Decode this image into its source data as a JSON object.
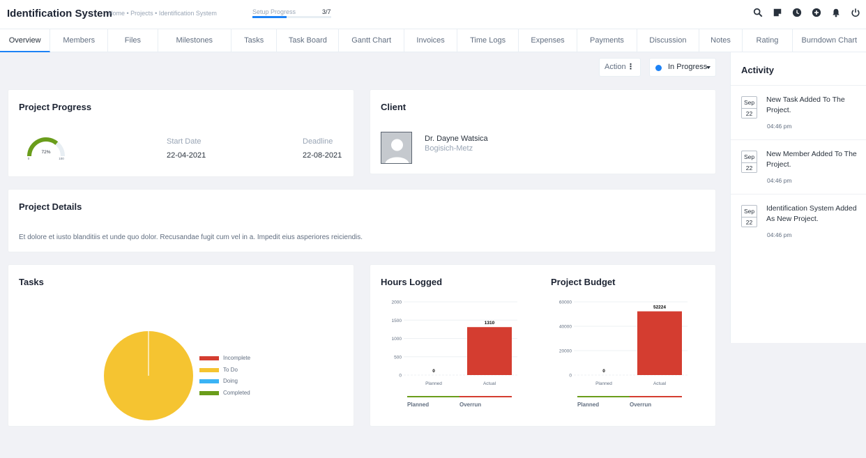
{
  "header": {
    "app_title": "Identification System",
    "breadcrumb": "Home • Projects • Identification System",
    "setup_label": "Setup Progress",
    "setup_count": "3/7",
    "setup_progress": 0.43,
    "icons": [
      "search-icon",
      "sticky-note-icon",
      "clock-icon",
      "plus-circle-icon",
      "bell-icon",
      "power-icon"
    ]
  },
  "tabs": [
    {
      "label": "Overview",
      "active": true
    },
    {
      "label": "Members"
    },
    {
      "label": "Files"
    },
    {
      "label": "Milestones"
    },
    {
      "label": "Tasks"
    },
    {
      "label": "Task Board"
    },
    {
      "label": "Gantt Chart"
    },
    {
      "label": "Invoices"
    },
    {
      "label": "Time Logs"
    },
    {
      "label": "Expenses"
    },
    {
      "label": "Payments"
    },
    {
      "label": "Discussion"
    },
    {
      "label": "Notes"
    },
    {
      "label": "Rating"
    },
    {
      "label": "Burndown Chart"
    }
  ],
  "actions": {
    "action_label": "Action",
    "status_label": "In Progress",
    "status_color": "#1d82f5"
  },
  "progress_card": {
    "title": "Project Progress",
    "gauge_value": "72%",
    "gauge_min": "0",
    "gauge_max": "100",
    "start_label": "Start Date",
    "start_value": "22-04-2021",
    "deadline_label": "Deadline",
    "deadline_value": "22-08-2021"
  },
  "client_card": {
    "title": "Client",
    "name": "Dr. Dayne Watsica",
    "company": "Bogisich-Metz"
  },
  "details_card": {
    "title": "Project Details",
    "text": "Et dolore et iusto blanditiis et unde quo dolor. Recusandae fugit cum vel in a. Impedit eius asperiores reiciendis."
  },
  "tasks_card": {
    "title": "Tasks"
  },
  "hours_card": {
    "title": "Hours Logged",
    "legend_planned": "Planned",
    "legend_overrun": "Overrun"
  },
  "budget_card": {
    "title": "Project Budget",
    "legend_planned": "Planned",
    "legend_overrun": "Overrun"
  },
  "chart_data": [
    {
      "type": "pie",
      "title": "Tasks",
      "categories": [
        "Incomplete",
        "To Do",
        "Doing",
        "Completed"
      ],
      "values": [
        0,
        100,
        0,
        0
      ],
      "colors": [
        "#d43d30",
        "#f5c431",
        "#3ab3f5",
        "#6a9d1b"
      ],
      "legend": "right"
    },
    {
      "type": "bar",
      "title": "Hours Logged",
      "categories": [
        "Planned",
        "Actual"
      ],
      "values": [
        0,
        1310
      ],
      "ylim": [
        0,
        2000
      ],
      "yticks": [
        0,
        500,
        1000,
        1500,
        2000
      ],
      "bar_color": "#d43d30"
    },
    {
      "type": "bar",
      "title": "Project Budget",
      "categories": [
        "Planned",
        "Actual"
      ],
      "values": [
        0,
        52224
      ],
      "ylim": [
        0,
        60000
      ],
      "yticks": [
        0,
        20000,
        40000,
        60000
      ],
      "bar_color": "#d43d30"
    }
  ],
  "activity": {
    "title": "Activity",
    "items": [
      {
        "month": "Sep",
        "day": "22",
        "text": "New Task Added To The Project.",
        "time": "04:46 pm"
      },
      {
        "month": "Sep",
        "day": "22",
        "text": "New Member Added To The Project.",
        "time": "04:46 pm"
      },
      {
        "month": "Sep",
        "day": "22",
        "text": "Identification System Added As New Project.",
        "time": "04:46 pm"
      }
    ]
  }
}
